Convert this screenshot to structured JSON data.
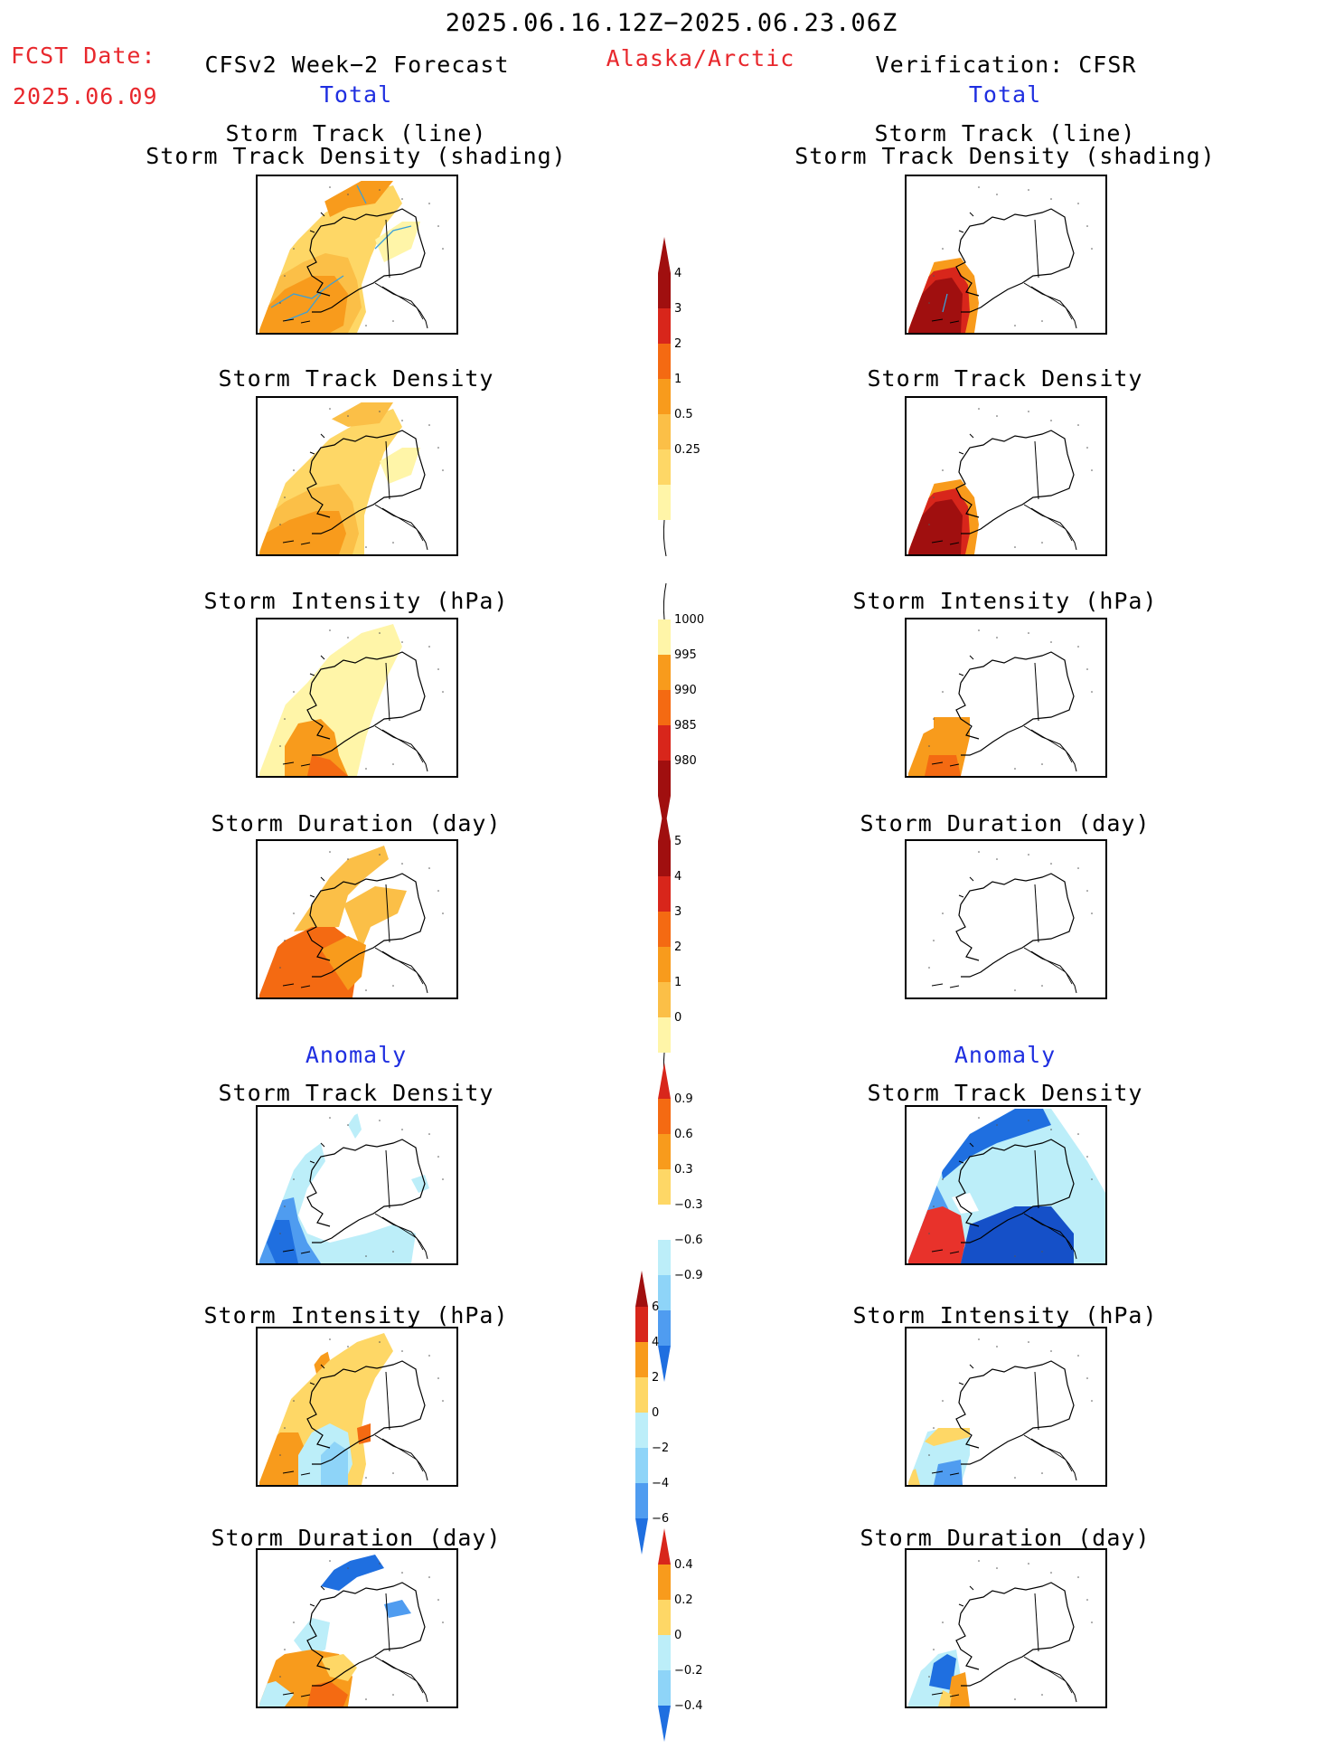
{
  "header": {
    "date_range": "2025.06.16.12Z−2025.06.23.06Z",
    "fcst_label": "FCST Date:",
    "fcst_date": "2025.06.09",
    "left_title": "CFSv2 Week−2 Forecast",
    "region": "Alaska/Arctic",
    "right_title": "Verification: CFSR",
    "total_label": "Total",
    "anomaly_label": "Anomaly"
  },
  "panel_titles": {
    "track_line": "Storm Track (line)",
    "track_shading": "Storm Track Density (shading)",
    "density": "Storm Track Density",
    "intensity": "Storm Intensity (hPa)",
    "duration": "Storm Duration (day)"
  },
  "colorbars": {
    "density_total": [
      "0.25",
      "0.5",
      "1",
      "2",
      "3",
      "4"
    ],
    "intensity_total": [
      "1000",
      "995",
      "990",
      "985",
      "980"
    ],
    "duration_total": [
      "0",
      "1",
      "2",
      "3",
      "4",
      "5"
    ],
    "density_anom": [
      "0.9",
      "0.6",
      "0.3",
      "−0.3",
      "−0.6",
      "−0.9"
    ],
    "intensity_anom": [
      "6",
      "4",
      "2",
      "0",
      "−2",
      "−4",
      "−6"
    ],
    "duration_anom": [
      "0.4",
      "0.2",
      "0",
      "−0.2",
      "−0.4"
    ]
  },
  "colors": {
    "yellow_light": "#fff5a8",
    "yellow": "#fed766",
    "orange_light": "#fbbf47",
    "orange": "#f89b1c",
    "orange_dark": "#f46a12",
    "red": "#d8261b",
    "dark_red": "#a00f0f",
    "light_blue": "#bceef9",
    "sky_blue": "#8ed4f8",
    "mid_blue": "#4f9cf0",
    "blue": "#1f6fe0",
    "dark_blue": "#1550c8",
    "track_line": "#3aa0d8"
  }
}
